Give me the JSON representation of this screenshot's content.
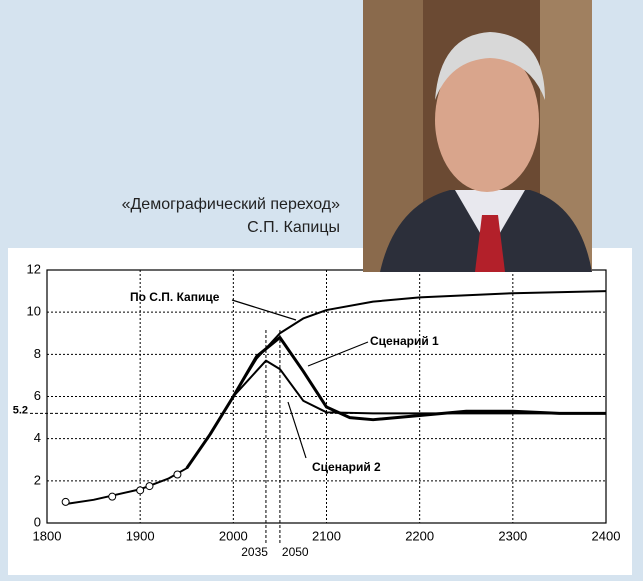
{
  "caption": [
    "«Демографический переход»",
    "С.П. Капицы"
  ],
  "chart_data": {
    "type": "line",
    "xlim": [
      1800,
      2400
    ],
    "xticks": [
      1800,
      1900,
      2000,
      2100,
      2200,
      2300,
      2400
    ],
    "ylim": [
      0,
      12
    ],
    "yticks": [
      0,
      2,
      4,
      6,
      8,
      10,
      12
    ],
    "grid": true,
    "series": [
      {
        "x": [
          1820,
          1850,
          1900,
          1930,
          1950,
          1975,
          2000,
          2025,
          2050,
          2075,
          2100,
          2150,
          2200,
          2300,
          2400
        ],
        "values": [
          0.9,
          1.1,
          1.6,
          2.1,
          2.6,
          4.2,
          6.0,
          7.8,
          9.0,
          9.7,
          10.1,
          10.5,
          10.7,
          10.9,
          11.0
        ],
        "color": "#000000"
      },
      {
        "x": [
          1950,
          1975,
          2000,
          2025,
          2050,
          2075,
          2100,
          2125,
          2150,
          2200,
          2250,
          2300,
          2350,
          2400
        ],
        "values": [
          2.6,
          4.2,
          6.0,
          7.9,
          8.8,
          7.2,
          5.5,
          5.0,
          4.9,
          5.1,
          5.3,
          5.3,
          5.2,
          5.2
        ],
        "color": "#000000"
      },
      {
        "x": [
          1950,
          1975,
          2000,
          2035,
          2050,
          2075,
          2100,
          2150,
          2400
        ],
        "values": [
          2.6,
          4.2,
          6.0,
          7.7,
          7.3,
          5.8,
          5.25,
          5.2,
          5.2
        ],
        "color": "#000000"
      },
      {
        "x": [
          1820,
          1870,
          1900,
          1910,
          1940
        ],
        "values": [
          1.0,
          1.25,
          1.55,
          1.75,
          2.3
        ],
        "color": "#000000",
        "marker": "circle"
      }
    ],
    "annotations": [
      "По С.П. Капице",
      "Сценарий 1",
      "Сценарий 2"
    ],
    "xrefs": [
      2035,
      2050
    ],
    "yrefs": [
      5.2
    ]
  }
}
